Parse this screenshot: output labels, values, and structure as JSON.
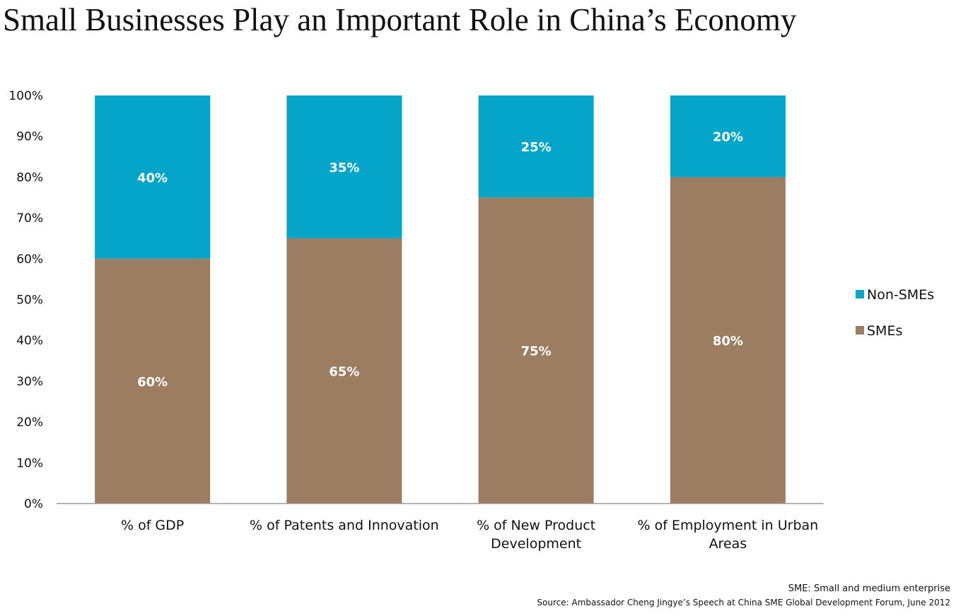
{
  "title": "Small Businesses Play an Important Role in China’s Economy",
  "footnotes": {
    "definition": "SME: Small and medium enterprise",
    "source": "Source: Ambassador Cheng Jingye’s Speech at China SME Global Development Forum, June 2012"
  },
  "colors": {
    "smes": "#9c7d61",
    "non_smes": "#05a5c9",
    "axis": "#9a9a9a",
    "label_inside": "#ffffff",
    "text": "#111111"
  },
  "chart_data": {
    "type": "bar",
    "stacked": true,
    "categories": [
      "% of GDP",
      "% of Patents and Innovation",
      "% of New Product Development",
      "% of Employment in Urban Areas"
    ],
    "series": [
      {
        "name": "SMEs",
        "values": [
          60,
          65,
          75,
          80
        ],
        "labels": [
          "60%",
          "65%",
          "75%",
          "80%"
        ]
      },
      {
        "name": "Non-SMEs",
        "values": [
          40,
          35,
          25,
          20
        ],
        "labels": [
          "40%",
          "35%",
          "25%",
          "20%"
        ]
      }
    ],
    "ylim": [
      0,
      100
    ],
    "yticks": [
      0,
      10,
      20,
      30,
      40,
      50,
      60,
      70,
      80,
      90,
      100
    ],
    "ytick_labels": [
      "0%",
      "10%",
      "20%",
      "30%",
      "40%",
      "50%",
      "60%",
      "70%",
      "80%",
      "90%",
      "100%"
    ],
    "xlabel": "",
    "ylabel": "",
    "grid": false,
    "legend": {
      "position": "right",
      "order": [
        "Non-SMEs",
        "SMEs"
      ]
    }
  }
}
